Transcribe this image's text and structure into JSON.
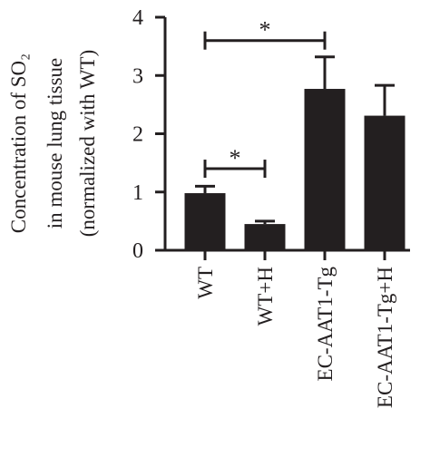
{
  "chart_data": {
    "type": "bar",
    "categories": [
      "WT",
      "WT+H",
      "EC-AAT1-Tg",
      "EC-AAT1-Tg+H"
    ],
    "values": [
      0.98,
      0.45,
      2.77,
      2.31
    ],
    "error_upper": [
      1.1,
      0.5,
      3.32,
      2.83
    ],
    "ylabel_lines": [
      "Concentration of SO₂",
      "in mouse lung tissue",
      "(normalized with WT)"
    ],
    "ylim": [
      0,
      4
    ],
    "yticks": [
      "0",
      "1",
      "2",
      "3",
      "4"
    ],
    "significance": [
      {
        "from": 0,
        "to": 1,
        "label": "*",
        "y": 1.4
      },
      {
        "from": 0,
        "to": 2,
        "label": "*",
        "y": 3.6
      }
    ],
    "bar_color": "#231f20",
    "grid": false,
    "legend": "none"
  }
}
